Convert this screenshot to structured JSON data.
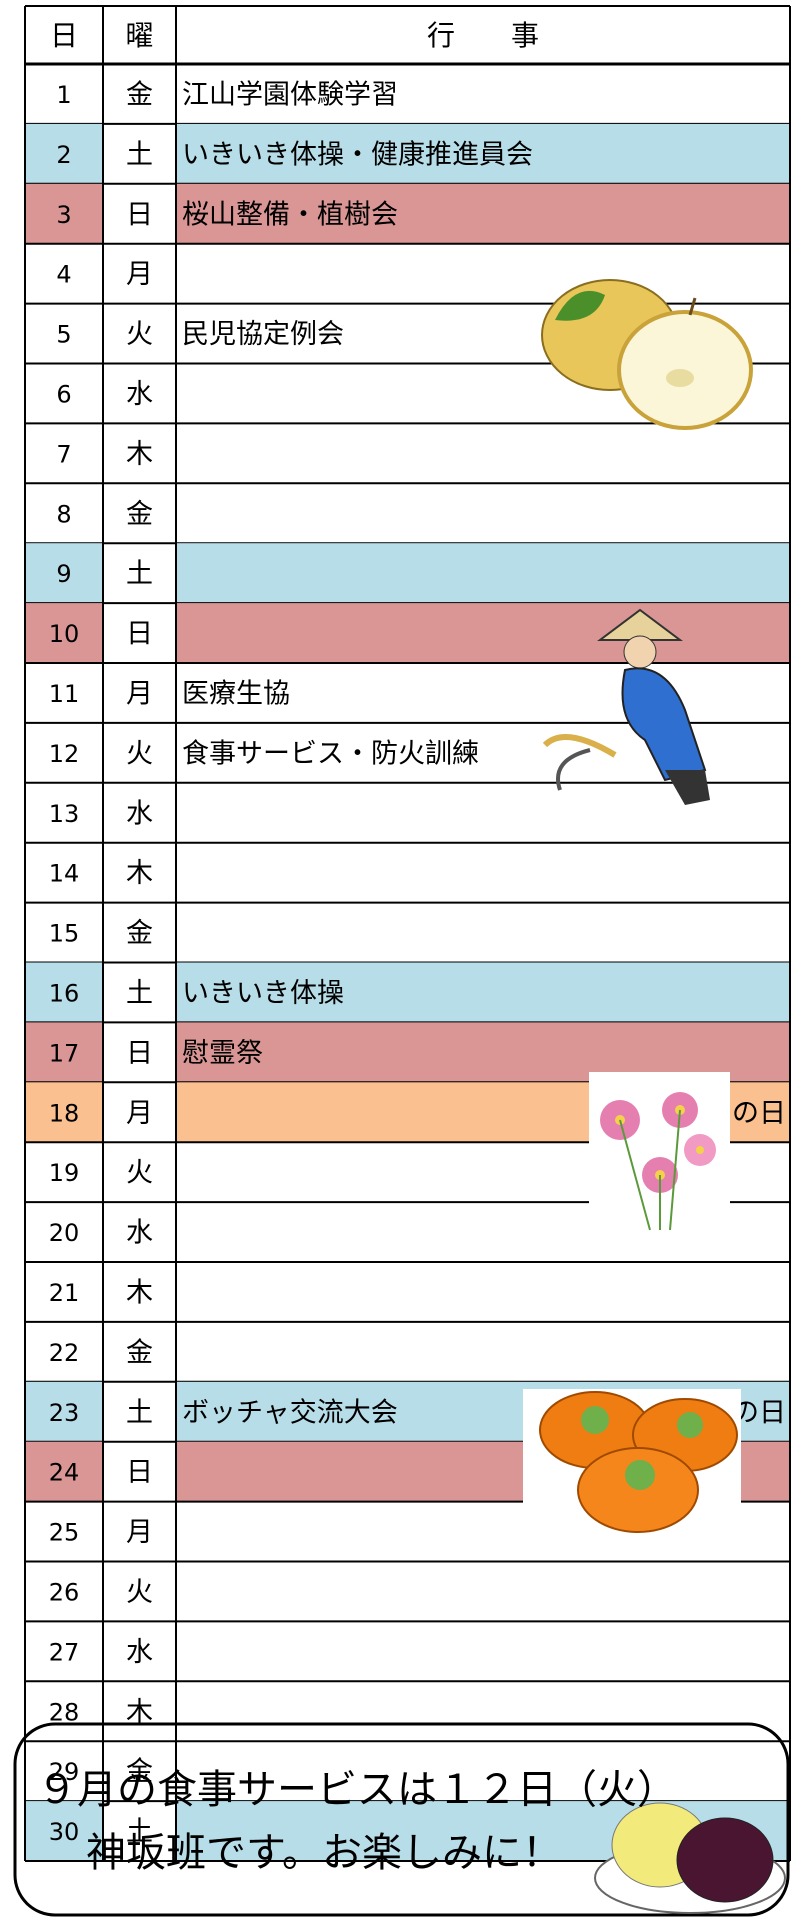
{
  "header": {
    "day": "日",
    "weekday": "曜",
    "event": "行　　事"
  },
  "rows": [
    {
      "day": "1",
      "weekday": "金",
      "event": "江山学園体験学習"
    },
    {
      "day": "2",
      "weekday": "土",
      "event": "いきいき体操・健康推進員会",
      "color": "#b7dde8"
    },
    {
      "day": "3",
      "weekday": "日",
      "event": "桜山整備・植樹会",
      "color": "#d99694"
    },
    {
      "day": "4",
      "weekday": "月",
      "event": ""
    },
    {
      "day": "5",
      "weekday": "火",
      "event": "民児協定例会"
    },
    {
      "day": "6",
      "weekday": "水",
      "event": ""
    },
    {
      "day": "7",
      "weekday": "木",
      "event": ""
    },
    {
      "day": "8",
      "weekday": "金",
      "event": ""
    },
    {
      "day": "9",
      "weekday": "土",
      "event": "",
      "color": "#b7dde8"
    },
    {
      "day": "10",
      "weekday": "日",
      "event": "",
      "color": "#d99694"
    },
    {
      "day": "11",
      "weekday": "月",
      "event": "医療生協"
    },
    {
      "day": "12",
      "weekday": "火",
      "event": "食事サービス・防火訓練"
    },
    {
      "day": "13",
      "weekday": "水",
      "event": ""
    },
    {
      "day": "14",
      "weekday": "木",
      "event": ""
    },
    {
      "day": "15",
      "weekday": "金",
      "event": ""
    },
    {
      "day": "16",
      "weekday": "土",
      "event": "いきいき体操",
      "color": "#b7dde8"
    },
    {
      "day": "17",
      "weekday": "日",
      "event": "慰霊祭",
      "color": "#d99694"
    },
    {
      "day": "18",
      "weekday": "月",
      "event": "",
      "note": "の日",
      "color": "#fac090"
    },
    {
      "day": "19",
      "weekday": "火",
      "event": ""
    },
    {
      "day": "20",
      "weekday": "水",
      "event": ""
    },
    {
      "day": "21",
      "weekday": "木",
      "event": ""
    },
    {
      "day": "22",
      "weekday": "金",
      "event": ""
    },
    {
      "day": "23",
      "weekday": "土",
      "event": "ボッチャ交流大会",
      "note": "の日",
      "color": "#b7dde8"
    },
    {
      "day": "24",
      "weekday": "日",
      "event": "",
      "color": "#d99694"
    },
    {
      "day": "25",
      "weekday": "月",
      "event": ""
    },
    {
      "day": "26",
      "weekday": "火",
      "event": ""
    },
    {
      "day": "27",
      "weekday": "水",
      "event": ""
    },
    {
      "day": "28",
      "weekday": "木",
      "event": ""
    },
    {
      "day": "29",
      "weekday": "金",
      "event": ""
    },
    {
      "day": "30",
      "weekday": "土",
      "event": "",
      "color": "#b7dde8"
    }
  ],
  "notice": {
    "line1": "９月の食事サービスは１２日（火）",
    "line2": "神坂班です。お楽しみに！"
  }
}
